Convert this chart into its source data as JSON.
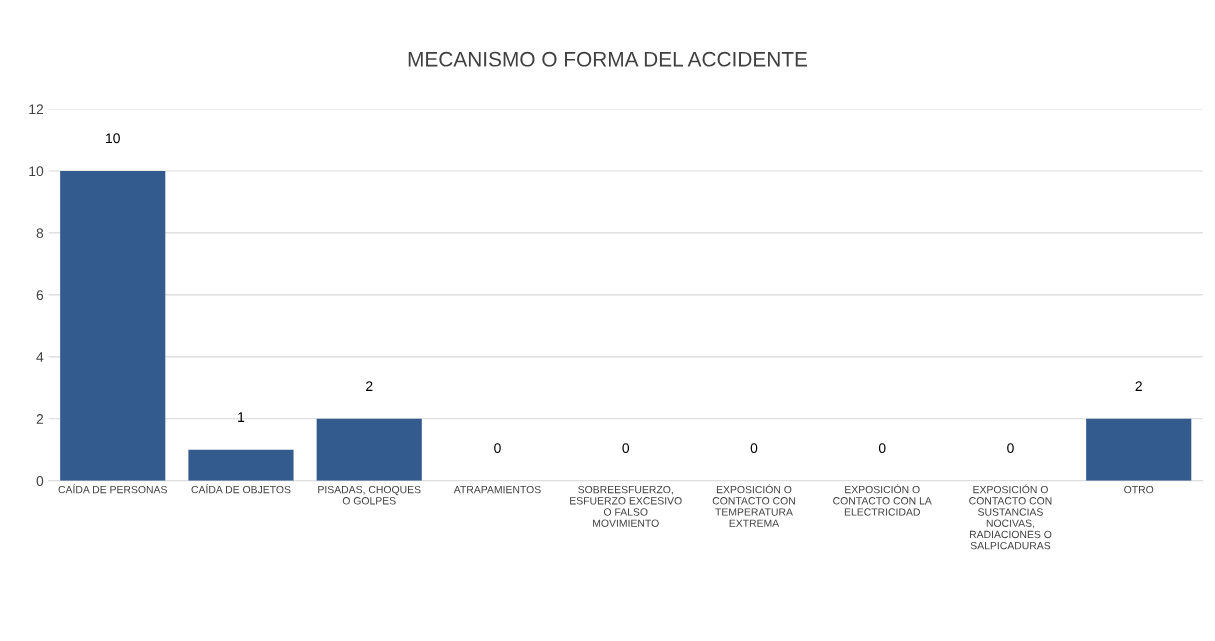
{
  "chart_data": {
    "type": "bar",
    "title": "MECANISMO O FORMA DEL ACCIDENTE",
    "categories": [
      "CAÍDA DE PERSONAS",
      "CAÍDA DE OBJETOS",
      "PISADAS, CHOQUES O GOLPES",
      "ATRAPAMIENTOS",
      "SOBREESFUERZO, ESFUERZO EXCESIVO O FALSO MOVIMIENTO",
      "EXPOSICIÓN O CONTACTO CON TEMPERATURA EXTREMA",
      "EXPOSICIÓN O CONTACTO CON LA ELECTRICIDAD",
      "EXPOSICIÓN O CONTACTO CON SUSTANCIAS NOCIVAS, RADIACIONES O SALPICADURAS",
      "OTRO"
    ],
    "values": [
      10,
      1,
      2,
      0,
      0,
      0,
      0,
      0,
      2
    ],
    "color": "#335b8e",
    "ylim": [
      0,
      12
    ],
    "yticks": [
      0,
      2,
      4,
      6,
      8,
      10,
      12
    ],
    "grid": "y",
    "data_labels": true
  }
}
